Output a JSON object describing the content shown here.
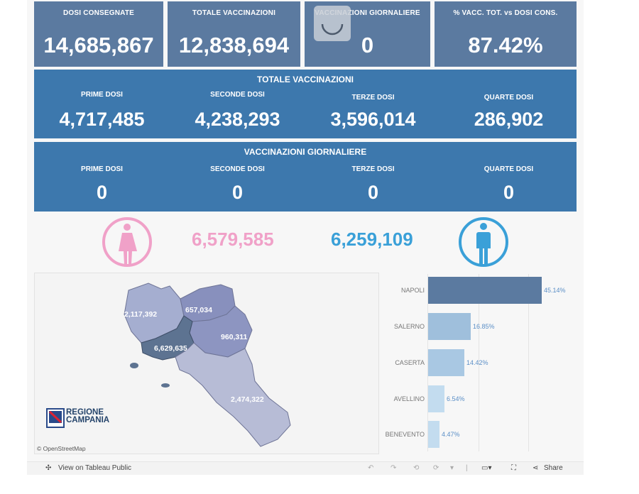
{
  "kpis": [
    {
      "label": "DOSI  CONSEGNATE",
      "value": "14,685,867"
    },
    {
      "label": "TOTALE VACCINAZIONI",
      "value": "12,838,694"
    },
    {
      "label": "VACCINAZIONI GIORNALIERE",
      "value": "0"
    },
    {
      "label": "% VACC. TOT. vs DOSI CONS.",
      "value": "87.42%"
    }
  ],
  "totale": {
    "title": "TOTALE VACCINAZIONI",
    "items": [
      {
        "label": "PRIME DOSI",
        "value": "4,717,485"
      },
      {
        "label": "SECONDE DOSI",
        "value": "4,238,293"
      },
      {
        "label": "TERZE DOSI",
        "value": "3,596,014"
      },
      {
        "label": "QUARTE DOSI",
        "value": "286,902"
      }
    ]
  },
  "giornaliere": {
    "title": "VACCINAZIONI GIORNALIERE",
    "items": [
      {
        "label": "PRIME DOSI",
        "value": "0"
      },
      {
        "label": "SECONDE DOSI",
        "value": "0"
      },
      {
        "label": "TERZE DOSI",
        "value": "0"
      },
      {
        "label": "QUARTE DOSI",
        "value": "0"
      }
    ]
  },
  "gender": {
    "female": "6,579,585",
    "male": "6,259,109",
    "female_color": "#f0a1c8",
    "male_color": "#3aa0d8"
  },
  "map": {
    "regions": [
      {
        "name": "Caserta",
        "value": "2,117,392"
      },
      {
        "name": "Benevento",
        "value": "657,034"
      },
      {
        "name": "Avellino",
        "value": "960,311"
      },
      {
        "name": "Napoli",
        "value": "6,629,635"
      },
      {
        "name": "Salerno",
        "value": "2,474,322"
      }
    ],
    "logo_line1": "REGIONE",
    "logo_line2": "CAMPANIA",
    "attribution": "© OpenStreetMap"
  },
  "provinces": [
    {
      "name": "NAPOLI",
      "pct": "45.14%",
      "share": 0.4514,
      "color": "#5b7aa0"
    },
    {
      "name": "SALERNO",
      "pct": "16.85%",
      "share": 0.1685,
      "color": "#9fbfdc"
    },
    {
      "name": "CASERTA",
      "pct": "14.42%",
      "share": 0.1442,
      "color": "#a9c8e3"
    },
    {
      "name": "AVELLINO",
      "pct": "6.54%",
      "share": 0.0654,
      "color": "#c3dcef"
    },
    {
      "name": "BENEVENTO",
      "pct": "4.47%",
      "share": 0.0447,
      "color": "#c3dcef"
    }
  ],
  "toolbar": {
    "view_label": "View on Tableau Public",
    "share_label": "Share"
  }
}
